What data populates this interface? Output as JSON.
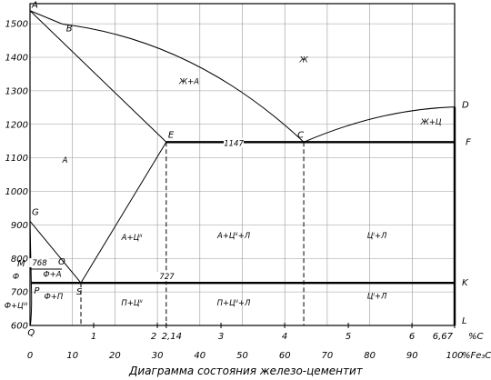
{
  "chart_data": {
    "type": "phase-diagram",
    "title": "Диаграмма состояния железо-цементит",
    "xlabel_percent": "%C",
    "xlabel_fe3c": "%Fe₃C",
    "y_ticks": [
      600,
      700,
      800,
      900,
      1000,
      1100,
      1200,
      1300,
      1400,
      1500
    ],
    "x_ticks_fe3c": [
      0,
      10,
      20,
      30,
      40,
      50,
      60,
      70,
      80,
      90,
      100
    ],
    "x_ticks_carbon": [
      {
        "label": "1",
        "c": 1
      },
      {
        "label": "2",
        "c": 2
      },
      {
        "label": "2,14",
        "c": 2.14
      },
      {
        "label": "3",
        "c": 3
      },
      {
        "label": "4",
        "c": 4
      },
      {
        "label": "5",
        "c": 5
      },
      {
        "label": "6",
        "c": 6
      },
      {
        "label": "6,67",
        "c": 6.67
      }
    ],
    "xlim": [
      0,
      100
    ],
    "ylim": [
      600,
      1560
    ],
    "points": {
      "A": {
        "label": "A",
        "c": 0,
        "t": 1539
      },
      "B": {
        "label": "B",
        "c": 0.51,
        "t": 1499
      },
      "C": {
        "label": "C",
        "c": 4.3,
        "t": 1147
      },
      "D": {
        "label": "D",
        "c": 6.67,
        "t": 1252
      },
      "E": {
        "label": "E",
        "c": 2.14,
        "t": 1147
      },
      "F": {
        "label": "F",
        "c": 6.67,
        "t": 1147
      },
      "G": {
        "label": "G",
        "c": 0,
        "t": 911
      },
      "P": {
        "label": "P",
        "c": 0.02,
        "t": 727
      },
      "S": {
        "label": "S",
        "c": 0.8,
        "t": 727
      },
      "K": {
        "label": "K",
        "c": 6.67,
        "t": 727
      },
      "Q": {
        "label": "Q",
        "c": 0.006,
        "t": 600
      },
      "L": {
        "label": "L",
        "c": 6.67,
        "t": 600
      },
      "M": {
        "label": "M",
        "c": 0,
        "t": 768
      },
      "O": {
        "label": "O",
        "c": 0.5,
        "t": 768
      }
    },
    "isotherms": [
      {
        "label": "1147",
        "t": 1147
      },
      {
        "label": "768",
        "t": 768
      },
      {
        "label": "727",
        "t": 727
      }
    ],
    "regions": [
      {
        "label": "Ж",
        "c": 4.3,
        "t": 1385
      },
      {
        "label": "Ж+А",
        "c": 2.5,
        "t": 1320
      },
      {
        "label": "Ж+Ц",
        "c": 6.3,
        "t": 1200
      },
      {
        "label": "А",
        "c": 0.55,
        "t": 1085
      },
      {
        "label": "А+Цᴵᴵ",
        "c": 1.6,
        "t": 855
      },
      {
        "label": "А+Цᴵᴵ+Л",
        "c": 3.2,
        "t": 860
      },
      {
        "label": "Цᴵ+Л",
        "c": 5.45,
        "t": 860
      },
      {
        "label": "Ф+А",
        "c": 0.35,
        "t": 745
      },
      {
        "label": "Ф",
        "c": -0.22,
        "t": 738
      },
      {
        "label": "Ф+П",
        "c": 0.37,
        "t": 678
      },
      {
        "label": "П+Цᴵᴵ",
        "c": 1.6,
        "t": 660
      },
      {
        "label": "П+Цᴵᴵ+Л",
        "c": 3.2,
        "t": 660
      },
      {
        "label": "Цᴵ+Л",
        "c": 5.45,
        "t": 680
      },
      {
        "label": "Ф+Цᴵᴵᴵ",
        "c": -0.22,
        "t": 652
      }
    ]
  }
}
